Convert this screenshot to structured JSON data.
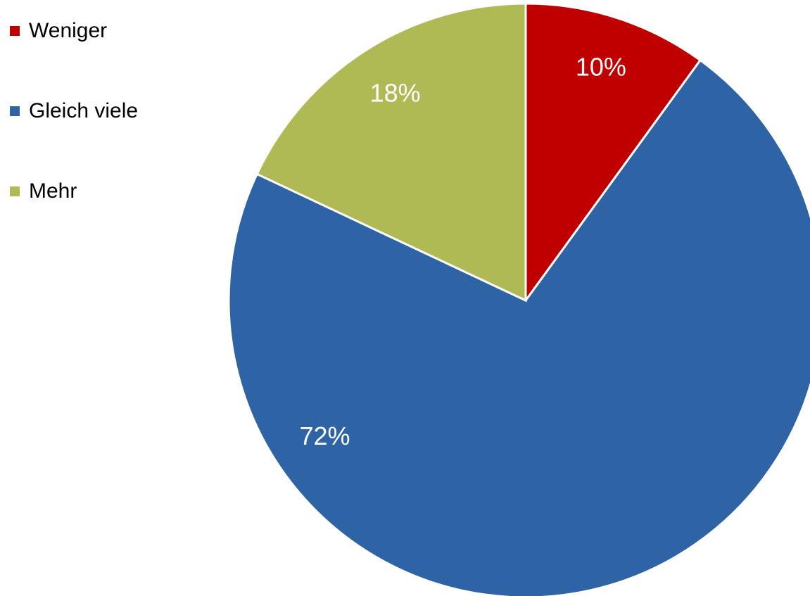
{
  "chart_data": {
    "type": "pie",
    "categories": [
      "Weniger",
      "Gleich viele",
      "Mehr"
    ],
    "values": [
      10,
      72,
      18
    ],
    "data_labels": [
      "10%",
      "72%",
      "18%"
    ],
    "colors": [
      "#C00000",
      "#2E63A6",
      "#AFBA55"
    ],
    "legend_placement": "left",
    "start_angle_deg": 0,
    "direction": "clockwise"
  }
}
